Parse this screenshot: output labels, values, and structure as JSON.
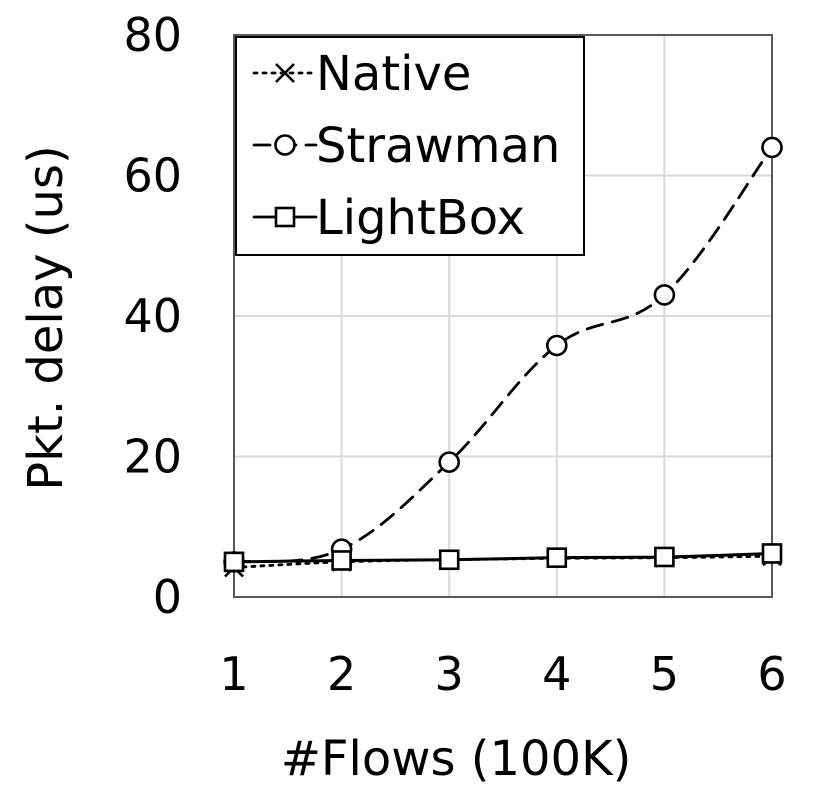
{
  "chart_data": {
    "type": "line",
    "xlabel": "#Flows (100K)",
    "ylabel": "Pkt. delay (us)",
    "x": [
      1,
      2,
      3,
      4,
      5,
      6
    ],
    "xticks": [
      "1",
      "2",
      "3",
      "4",
      "5",
      "6"
    ],
    "yticks": [
      "0",
      "20",
      "40",
      "60",
      "80"
    ],
    "xlim": [
      1,
      6
    ],
    "ylim": [
      0,
      80
    ],
    "grid": true,
    "legend_position": "top-left",
    "series": [
      {
        "name": "Native",
        "marker": "x",
        "line": "dotted",
        "values": [
          4.2,
          5.0,
          5.3,
          5.5,
          5.6,
          5.8
        ]
      },
      {
        "name": "Strawman",
        "marker": "circle",
        "line": "dashed",
        "values": [
          5.0,
          6.8,
          19.2,
          35.8,
          43.0,
          64.0
        ]
      },
      {
        "name": "LightBox",
        "marker": "square",
        "line": "solid",
        "values": [
          5.0,
          5.2,
          5.3,
          5.6,
          5.7,
          6.2
        ]
      }
    ]
  }
}
